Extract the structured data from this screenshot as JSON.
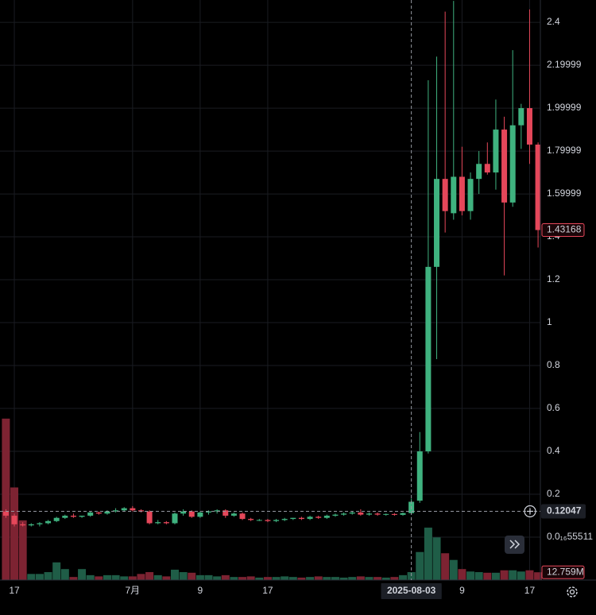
{
  "chart_data": {
    "type": "candlestick",
    "x": [
      "2025-06-16",
      "2025-06-17",
      "2025-06-18",
      "2025-06-19",
      "2025-06-20",
      "2025-06-21",
      "2025-06-22",
      "2025-06-23",
      "2025-06-24",
      "2025-06-25",
      "2025-06-26",
      "2025-06-27",
      "2025-06-28",
      "2025-06-29",
      "2025-06-30",
      "2025-07-01",
      "2025-07-02",
      "2025-07-03",
      "2025-07-04",
      "2025-07-05",
      "2025-07-06",
      "2025-07-07",
      "2025-07-08",
      "2025-07-09",
      "2025-07-10",
      "2025-07-11",
      "2025-07-12",
      "2025-07-13",
      "2025-07-14",
      "2025-07-15",
      "2025-07-16",
      "2025-07-17",
      "2025-07-18",
      "2025-07-19",
      "2025-07-20",
      "2025-07-21",
      "2025-07-22",
      "2025-07-23",
      "2025-07-24",
      "2025-07-25",
      "2025-07-26",
      "2025-07-27",
      "2025-07-28",
      "2025-07-29",
      "2025-07-30",
      "2025-07-31",
      "2025-08-01",
      "2025-08-02",
      "2025-08-03",
      "2025-08-04",
      "2025-08-05",
      "2025-08-06",
      "2025-08-07",
      "2025-08-08",
      "2025-08-09",
      "2025-08-10",
      "2025-08-11",
      "2025-08-12",
      "2025-08-13",
      "2025-08-14",
      "2025-08-15",
      "2025-08-16",
      "2025-08-17",
      "2025-08-18"
    ],
    "open": [
      0.12,
      0.1,
      0.06,
      0.055,
      0.06,
      0.065,
      0.075,
      0.09,
      0.1,
      0.095,
      0.1,
      0.115,
      0.11,
      0.12,
      0.125,
      0.135,
      0.125,
      0.12,
      0.065,
      0.07,
      0.065,
      0.11,
      0.12,
      0.095,
      0.115,
      0.12,
      0.125,
      0.1,
      0.11,
      0.085,
      0.08,
      0.08,
      0.075,
      0.08,
      0.085,
      0.09,
      0.085,
      0.095,
      0.09,
      0.1,
      0.105,
      0.11,
      0.115,
      0.105,
      0.11,
      0.105,
      0.108,
      0.104,
      0.112,
      0.17,
      0.4,
      1.26,
      1.67,
      1.51,
      1.68,
      1.52,
      1.67,
      1.74,
      1.7,
      1.9,
      1.56,
      1.92,
      2.0,
      1.83
    ],
    "high": [
      0.13,
      0.11,
      0.07,
      0.065,
      0.07,
      0.08,
      0.095,
      0.105,
      0.11,
      0.1,
      0.12,
      0.12,
      0.125,
      0.135,
      0.14,
      0.145,
      0.13,
      0.125,
      0.08,
      0.075,
      0.115,
      0.13,
      0.125,
      0.12,
      0.125,
      0.13,
      0.13,
      0.115,
      0.115,
      0.09,
      0.085,
      0.085,
      0.085,
      0.09,
      0.09,
      0.095,
      0.1,
      0.1,
      0.105,
      0.11,
      0.115,
      0.12,
      0.13,
      0.115,
      0.115,
      0.11,
      0.112,
      0.115,
      0.18,
      0.49,
      2.13,
      2.24,
      2.45,
      2.5,
      1.82,
      1.7,
      1.8,
      1.84,
      2.04,
      1.96,
      2.27,
      2.02,
      2.46,
      1.84
    ],
    "low": [
      0.09,
      0.05,
      0.05,
      0.05,
      0.05,
      0.06,
      0.07,
      0.085,
      0.09,
      0.09,
      0.095,
      0.105,
      0.105,
      0.115,
      0.12,
      0.12,
      0.115,
      0.06,
      0.06,
      0.06,
      0.06,
      0.1,
      0.09,
      0.09,
      0.105,
      0.11,
      0.09,
      0.095,
      0.08,
      0.075,
      0.075,
      0.07,
      0.07,
      0.075,
      0.08,
      0.08,
      0.08,
      0.085,
      0.085,
      0.095,
      0.1,
      0.105,
      0.1,
      0.1,
      0.1,
      0.1,
      0.1,
      0.1,
      0.105,
      0.16,
      0.39,
      0.83,
      1.42,
      1.48,
      1.5,
      1.48,
      1.6,
      1.69,
      1.62,
      1.22,
      1.54,
      1.81,
      1.74,
      1.35
    ],
    "close": [
      0.1,
      0.06,
      0.055,
      0.06,
      0.065,
      0.075,
      0.09,
      0.1,
      0.095,
      0.1,
      0.115,
      0.11,
      0.12,
      0.125,
      0.135,
      0.125,
      0.12,
      0.065,
      0.07,
      0.065,
      0.11,
      0.12,
      0.095,
      0.115,
      0.12,
      0.125,
      0.1,
      0.11,
      0.085,
      0.08,
      0.08,
      0.075,
      0.08,
      0.085,
      0.09,
      0.085,
      0.095,
      0.09,
      0.1,
      0.105,
      0.11,
      0.115,
      0.105,
      0.11,
      0.105,
      0.108,
      0.104,
      0.112,
      0.165,
      0.4,
      1.26,
      1.67,
      1.52,
      1.68,
      1.52,
      1.67,
      1.74,
      1.7,
      1.9,
      1.56,
      1.92,
      2.0,
      1.83,
      1.43168
    ],
    "volume": [
      265,
      152,
      98,
      10,
      10,
      13,
      29,
      18,
      5,
      18,
      8,
      6,
      8,
      8,
      6,
      6,
      10,
      13,
      8,
      6,
      17,
      13,
      12,
      8,
      8,
      6,
      8,
      5,
      5,
      6,
      4,
      5,
      5,
      6,
      5,
      4,
      5,
      6,
      5,
      5,
      4,
      5,
      6,
      5,
      5,
      4,
      5,
      8,
      13,
      46,
      86,
      70,
      44,
      33,
      18,
      14,
      13,
      12,
      12,
      16,
      16,
      14,
      16,
      12.759
    ],
    "up_color": "#3fb27f",
    "down_color": "#e5475a",
    "volume_up_color": "#1f5d47",
    "volume_down_color": "#7d2332",
    "ylim": [
      -0.111,
      2.504
    ],
    "yticks": [
      {
        "value": 0,
        "label": "0.0₁₆55511"
      },
      0.2,
      0.4,
      0.6,
      0.8,
      1,
      1.2,
      1.4,
      1.59999,
      1.79999,
      1.99999,
      2.19999,
      2.4
    ],
    "volume_lim": [
      0,
      300
    ],
    "xticks": [
      {
        "value": "2025-06-17",
        "label": "17"
      },
      {
        "value": "2025-07-01",
        "label": "7月"
      },
      {
        "value": "2025-07-09",
        "label": "9"
      },
      {
        "value": "2025-07-17",
        "label": "17"
      },
      {
        "value": "2025-08-09",
        "label": "9"
      },
      {
        "value": "2025-08-17",
        "label": "17"
      }
    ],
    "crosshair": {
      "x": "2025-08-03",
      "y": 0.12047
    },
    "last_price": 1.43168,
    "last_volume_label": "12.759M",
    "grid": true
  }
}
